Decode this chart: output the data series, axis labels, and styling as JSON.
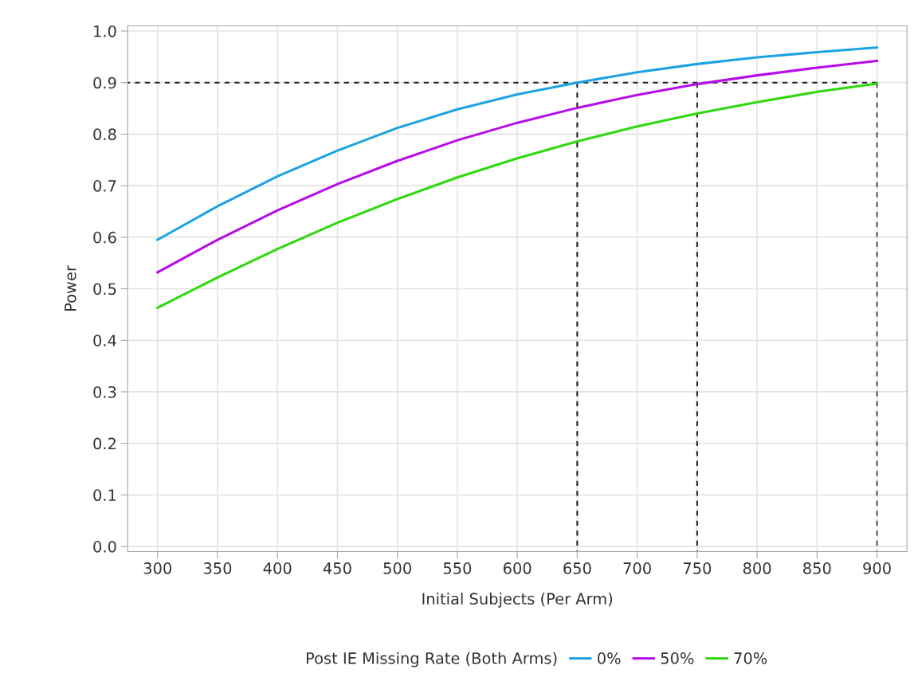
{
  "chart_data": {
    "type": "line",
    "xlabel": "Initial Subjects (Per Arm)",
    "ylabel": "Power",
    "legend_title": "Post IE Missing Rate (Both Arms)",
    "legend": "bottom",
    "grid": true,
    "marker": "none",
    "x": [
      300,
      350,
      400,
      450,
      500,
      550,
      600,
      650,
      700,
      750,
      800,
      850,
      900
    ],
    "xlim": [
      275,
      925
    ],
    "xticks": [
      300,
      350,
      400,
      450,
      500,
      550,
      600,
      650,
      700,
      750,
      800,
      850,
      900
    ],
    "ylim": [
      -0.01,
      1.01
    ],
    "yticks": [
      {
        "value": 0,
        "label": "0.0"
      },
      0.1,
      0.2,
      0.3,
      0.4,
      0.5,
      0.6,
      0.7,
      0.8,
      0.9,
      {
        "value": 1,
        "label": "1.0"
      }
    ],
    "series": [
      {
        "name": "0%",
        "color": "#1ba3e2",
        "line_style": "solid",
        "values": [
          0.595,
          0.66,
          0.718,
          0.768,
          0.812,
          0.848,
          0.877,
          0.9,
          0.92,
          0.936,
          0.949,
          0.959,
          0.968
        ]
      },
      {
        "name": "50%",
        "color": "#b70de8",
        "line_style": "solid",
        "values": [
          0.532,
          0.595,
          0.652,
          0.703,
          0.748,
          0.788,
          0.822,
          0.851,
          0.876,
          0.897,
          0.914,
          0.929,
          0.942
        ]
      },
      {
        "name": "70%",
        "color": "#2fd80f",
        "line_style": "solid",
        "values": [
          0.463,
          0.522,
          0.577,
          0.628,
          0.674,
          0.716,
          0.753,
          0.786,
          0.815,
          0.84,
          0.862,
          0.882,
          0.898
        ]
      },
      {
        "color": "#222222",
        "line_style": "dashed",
        "x": [
          900,
          275
        ],
        "values": [
          0.9,
          0.9
        ]
      },
      {
        "color": "#222222",
        "line_style": "dashed",
        "x": [
          650,
          650
        ],
        "values": [
          0.9,
          -0.01
        ]
      },
      {
        "color": "#222222",
        "line_style": "dashed",
        "x": [
          750,
          750
        ],
        "values": [
          0.9,
          -0.01
        ]
      },
      {
        "color": "#555555",
        "line_style": "dashed",
        "x": [
          900,
          900
        ],
        "values": [
          0.9,
          -0.01
        ]
      }
    ]
  }
}
